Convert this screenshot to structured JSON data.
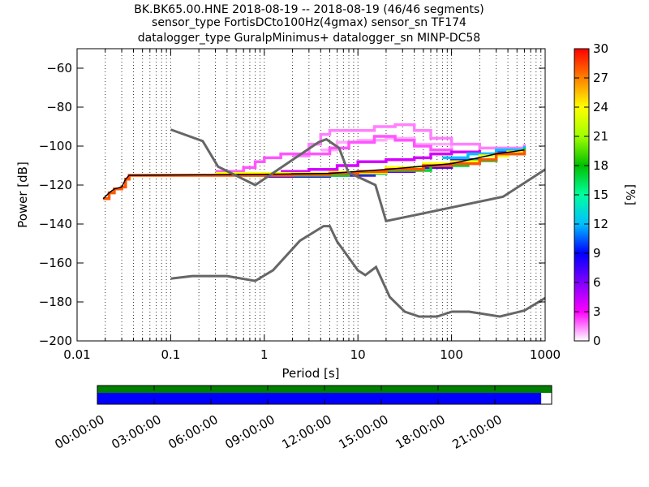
{
  "title_lines": [
    "BK.BK65.00.HNE   2018-08-19 -- 2018-08-19  (46/46 segments)",
    "sensor_type FortisDCto100Hz(4gmax) sensor_sn TF174",
    "datalogger_type GuralpMinimus+ datalogger_sn MINP-DC58"
  ],
  "chart_data": {
    "type": "heatmap",
    "subtype": "probabilistic power spectral density",
    "xlabel": "Period [s]",
    "ylabel": "Power [dB]",
    "xscale": "log",
    "xlim": [
      0.01,
      1000
    ],
    "ylim": [
      -200,
      -50
    ],
    "xticks": [
      0.01,
      0.1,
      1,
      10,
      100,
      1000
    ],
    "xtick_labels": [
      "0.01",
      "0.1",
      "1",
      "10",
      "100",
      "1000"
    ],
    "yticks": [
      -200,
      -180,
      -160,
      -140,
      -120,
      -100,
      -80,
      -60
    ],
    "ytick_labels": [
      "−200",
      "−180",
      "−160",
      "−140",
      "−120",
      "−100",
      "−80",
      "−60"
    ],
    "grid": "dotted vertical at minor log ticks",
    "colorbar": {
      "label": "[%]",
      "range": [
        0,
        30
      ],
      "ticks": [
        0,
        3,
        6,
        9,
        12,
        15,
        18,
        21,
        24,
        27,
        30
      ],
      "colormap": "pqlx"
    },
    "noise_models": {
      "color": "#666666",
      "nhnm": [
        [
          0.1,
          -91.5
        ],
        [
          0.22,
          -97.4
        ],
        [
          0.32,
          -110.5
        ],
        [
          0.8,
          -120
        ],
        [
          3.8,
          -98
        ],
        [
          4.6,
          -96.5
        ],
        [
          6.3,
          -101
        ],
        [
          7.9,
          -113.5
        ],
        [
          15.4,
          -120
        ],
        [
          20,
          -138.5
        ],
        [
          354.8,
          -126
        ],
        [
          1000,
          -112
        ]
      ],
      "nlnm": [
        [
          0.1,
          -168
        ],
        [
          0.17,
          -166.7
        ],
        [
          0.4,
          -166.7
        ],
        [
          0.8,
          -169.2
        ],
        [
          1.24,
          -163.7
        ],
        [
          2.4,
          -148.6
        ],
        [
          4.3,
          -141.1
        ],
        [
          5,
          -141.1
        ],
        [
          6,
          -149
        ],
        [
          10,
          -163.8
        ],
        [
          12,
          -166.2
        ],
        [
          15.6,
          -162.1
        ],
        [
          21.9,
          -177.5
        ],
        [
          31.6,
          -185
        ],
        [
          45,
          -187.5
        ],
        [
          70,
          -187.5
        ],
        [
          101,
          -185
        ],
        [
          154,
          -185
        ],
        [
          328,
          -187.5
        ],
        [
          600,
          -184.4
        ],
        [
          1000,
          -178
        ]
      ]
    },
    "mode_line": {
      "color": "#000000",
      "points": [
        [
          0.019,
          -127
        ],
        [
          0.022,
          -124
        ],
        [
          0.025,
          -122
        ],
        [
          0.03,
          -121
        ],
        [
          0.033,
          -117
        ],
        [
          0.036,
          -115
        ],
        [
          1,
          -114.5
        ],
        [
          5,
          -114
        ],
        [
          20,
          -112
        ],
        [
          100,
          -109
        ],
        [
          300,
          -104
        ],
        [
          600,
          -102
        ]
      ]
    },
    "density_bands": [
      {
        "pct": 28,
        "points": [
          [
            0.019,
            -127
          ],
          [
            0.022,
            -124
          ],
          [
            0.025,
            -122
          ],
          [
            0.03,
            -121
          ],
          [
            0.033,
            -117
          ],
          [
            0.036,
            -115
          ],
          [
            1,
            -115
          ],
          [
            2,
            -114.5
          ],
          [
            5,
            -114
          ],
          [
            10,
            -113
          ],
          [
            20,
            -112
          ],
          [
            50,
            -110
          ],
          [
            100,
            -109
          ],
          [
            200,
            -107
          ],
          [
            300,
            -104
          ],
          [
            600,
            -102
          ]
        ]
      },
      {
        "pct": 24,
        "points": [
          [
            0.3,
            -114
          ],
          [
            1,
            -114
          ],
          [
            5,
            -113.5
          ],
          [
            20,
            -111
          ],
          [
            50,
            -109
          ],
          [
            100,
            -108
          ],
          [
            200,
            -105
          ],
          [
            400,
            -103
          ],
          [
            600,
            -102
          ]
        ]
      },
      {
        "pct": 17,
        "points": [
          [
            0.6,
            -115
          ],
          [
            3,
            -115
          ],
          [
            8,
            -114
          ],
          [
            20,
            -112.5
          ],
          [
            60,
            -110
          ],
          [
            150,
            -107.5
          ],
          [
            300,
            -104
          ],
          [
            600,
            -101
          ]
        ]
      },
      {
        "pct": 12,
        "points": [
          [
            80,
            -106
          ],
          [
            150,
            -104
          ],
          [
            300,
            -102
          ],
          [
            600,
            -100
          ]
        ]
      },
      {
        "pct": 7,
        "points": [
          [
            1,
            -115.5
          ],
          [
            5,
            -115
          ],
          [
            15,
            -113
          ],
          [
            40,
            -111
          ],
          [
            100,
            -107
          ],
          [
            200,
            -104
          ],
          [
            300,
            -103
          ],
          [
            400,
            -105
          ]
        ]
      },
      {
        "pct": 4,
        "points": [
          [
            1.5,
            -113
          ],
          [
            3,
            -112
          ],
          [
            6,
            -110
          ],
          [
            10,
            -108
          ],
          [
            20,
            -107
          ],
          [
            40,
            -106
          ],
          [
            60,
            -104
          ],
          [
            100,
            -103
          ],
          [
            200,
            -102
          ]
        ]
      },
      {
        "pct": 2,
        "points": [
          [
            0.3,
            -113
          ],
          [
            0.6,
            -111
          ],
          [
            0.8,
            -108
          ],
          [
            1,
            -106
          ],
          [
            1.5,
            -104
          ],
          [
            3,
            -104
          ],
          [
            5,
            -101
          ],
          [
            8,
            -98
          ],
          [
            15,
            -95
          ],
          [
            25,
            -97
          ],
          [
            40,
            -100
          ],
          [
            60,
            -102
          ],
          [
            100,
            -103
          ]
        ]
      },
      {
        "pct": 1.5,
        "points": [
          [
            2,
            -105
          ],
          [
            3,
            -99
          ],
          [
            4,
            -94
          ],
          [
            5,
            -92
          ],
          [
            8,
            -92
          ],
          [
            15,
            -90
          ],
          [
            25,
            -89
          ],
          [
            40,
            -92
          ],
          [
            60,
            -96
          ],
          [
            100,
            -99
          ],
          [
            200,
            -101
          ],
          [
            600,
            -99
          ]
        ]
      },
      {
        "pct": 1,
        "points": [
          [
            4,
            -102
          ],
          [
            6,
            -98
          ],
          [
            10,
            -97
          ],
          [
            20,
            -96
          ],
          [
            40,
            -99
          ],
          [
            100,
            -103
          ]
        ]
      }
    ],
    "time_coverage": {
      "tick_labels": [
        "00:00:00",
        "03:00:00",
        "06:00:00",
        "09:00:00",
        "12:00:00",
        "15:00:00",
        "18:00:00",
        "21:00:00"
      ],
      "top_bar_fraction": 1.0,
      "bottom_bar_fraction": 0.977,
      "top_bar_color": "#008000",
      "bottom_bar_color": "#0000ff"
    }
  }
}
